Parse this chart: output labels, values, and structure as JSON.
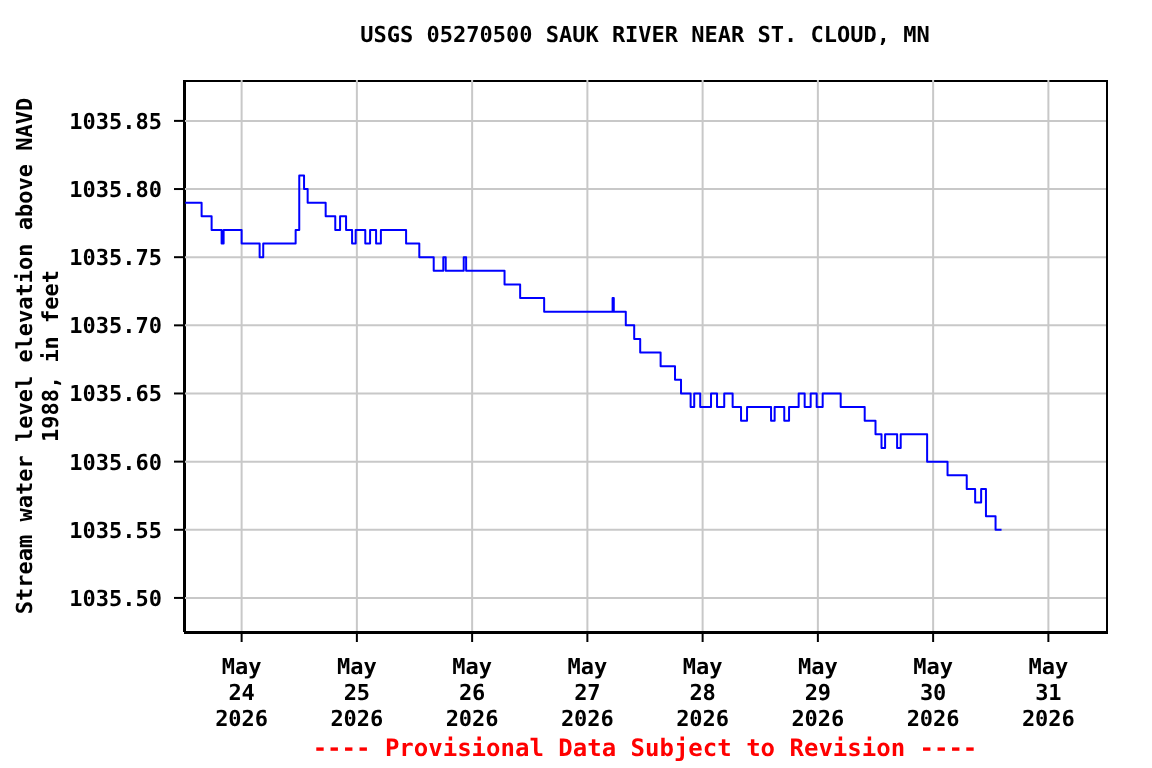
{
  "chart_data": {
    "type": "step",
    "title": "USGS 05270500 SAUK RIVER NEAR ST. CLOUD, MN",
    "ylabel": "Stream water level elevation above NAVD 1988, in feet",
    "annotations": [
      "---- Provisional Data Subject to Revision ----"
    ],
    "x": [
      "2026-05-23T12:15",
      "2026-05-23T15:40",
      "2026-05-23T17:45",
      "2026-05-23T19:50",
      "2026-05-23T20:15",
      "2026-05-24T00:00",
      "2026-05-24T03:45",
      "2026-05-24T04:30",
      "2026-05-24T11:15",
      "2026-05-24T12:00",
      "2026-05-24T13:00",
      "2026-05-24T13:45",
      "2026-05-24T17:30",
      "2026-05-24T19:30",
      "2026-05-24T20:30",
      "2026-05-24T21:45",
      "2026-05-24T23:00",
      "2026-05-24T23:45",
      "2026-05-25T01:45",
      "2026-05-25T02:45",
      "2026-05-25T04:00",
      "2026-05-25T05:00",
      "2026-05-25T10:15",
      "2026-05-25T13:00",
      "2026-05-25T16:00",
      "2026-05-25T18:00",
      "2026-05-25T18:30",
      "2026-05-25T22:15",
      "2026-05-25T22:45",
      "2026-05-26T06:45",
      "2026-05-26T10:00",
      "2026-05-26T15:00",
      "2026-05-27T05:15",
      "2026-05-27T05:30",
      "2026-05-27T08:00",
      "2026-05-27T09:45",
      "2026-05-27T11:00",
      "2026-05-27T15:15",
      "2026-05-27T18:15",
      "2026-05-27T19:30",
      "2026-05-27T21:30",
      "2026-05-27T22:15",
      "2026-05-27T23:30",
      "2026-05-28T01:45",
      "2026-05-28T03:00",
      "2026-05-28T04:30",
      "2026-05-28T06:15",
      "2026-05-28T08:00",
      "2026-05-28T09:15",
      "2026-05-28T14:15",
      "2026-05-28T15:00",
      "2026-05-28T17:00",
      "2026-05-28T18:00",
      "2026-05-28T20:00",
      "2026-05-28T21:15",
      "2026-05-28T22:30",
      "2026-05-28T23:45",
      "2026-05-29T01:00",
      "2026-05-29T04:45",
      "2026-05-29T09:45",
      "2026-05-29T12:00",
      "2026-05-29T13:15",
      "2026-05-29T14:00",
      "2026-05-29T16:30",
      "2026-05-29T17:15",
      "2026-05-29T22:45",
      "2026-05-30T03:00",
      "2026-05-30T05:45",
      "2026-05-30T07:00",
      "2026-05-30T08:45",
      "2026-05-30T10:00",
      "2026-05-30T11:00",
      "2026-05-30T13:00",
      "2026-05-30T14:15"
    ],
    "series": [
      {
        "color": "#0000ff",
        "values": [
          1035.79,
          1035.78,
          1035.77,
          1035.76,
          1035.77,
          1035.76,
          1035.75,
          1035.76,
          1035.77,
          1035.81,
          1035.8,
          1035.79,
          1035.78,
          1035.77,
          1035.78,
          1035.77,
          1035.76,
          1035.77,
          1035.76,
          1035.77,
          1035.76,
          1035.77,
          1035.76,
          1035.75,
          1035.74,
          1035.75,
          1035.74,
          1035.75,
          1035.74,
          1035.73,
          1035.72,
          1035.71,
          1035.72,
          1035.71,
          1035.7,
          1035.69,
          1035.68,
          1035.67,
          1035.66,
          1035.65,
          1035.64,
          1035.65,
          1035.64,
          1035.65,
          1035.64,
          1035.65,
          1035.64,
          1035.63,
          1035.64,
          1035.63,
          1035.64,
          1035.63,
          1035.64,
          1035.65,
          1035.64,
          1035.65,
          1035.64,
          1035.65,
          1035.64,
          1035.63,
          1035.62,
          1035.61,
          1035.62,
          1035.61,
          1035.62,
          1035.6,
          1035.59,
          1035.59,
          1035.58,
          1035.57,
          1035.58,
          1035.56,
          1035.55,
          1035.55
        ]
      }
    ],
    "xlim": [
      "2026-05-23T12:00",
      "2026-05-31T12:00"
    ],
    "xticks": [
      {
        "value": "2026-05-24",
        "label": "May 24 2026"
      },
      {
        "value": "2026-05-25",
        "label": "May 25 2026"
      },
      {
        "value": "2026-05-26",
        "label": "May 26 2026"
      },
      {
        "value": "2026-05-27",
        "label": "May 27 2026"
      },
      {
        "value": "2026-05-28",
        "label": "May 28 2026"
      },
      {
        "value": "2026-05-29",
        "label": "May 29 2026"
      },
      {
        "value": "2026-05-30",
        "label": "May 30 2026"
      },
      {
        "value": "2026-05-31",
        "label": "May 31 2026"
      }
    ],
    "ylim": [
      1035.475,
      1035.88
    ],
    "yticks": [
      {
        "value": 1035.5,
        "label": "1035.50"
      },
      1035.55,
      {
        "value": 1035.6,
        "label": "1035.60"
      },
      1035.65,
      {
        "value": 1035.7,
        "label": "1035.70"
      },
      1035.75,
      {
        "value": 1035.8,
        "label": "1035.80"
      },
      1035.85
    ],
    "grid": true,
    "marker": "none",
    "line_style": "solid"
  }
}
